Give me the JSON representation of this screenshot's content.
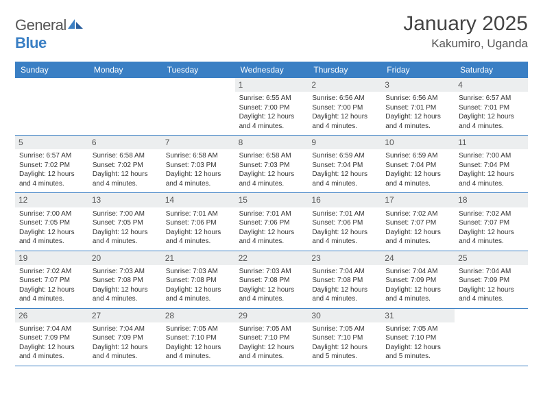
{
  "logo": {
    "text1": "General",
    "text2": "Blue"
  },
  "title": "January 2025",
  "location": "Kakumiro, Uganda",
  "day_names": [
    "Sunday",
    "Monday",
    "Tuesday",
    "Wednesday",
    "Thursday",
    "Friday",
    "Saturday"
  ],
  "colors": {
    "header_bg": "#3a7fc4",
    "header_fg": "#ffffff",
    "date_bg": "#eceeef",
    "border": "#3a7fc4",
    "text": "#333333"
  },
  "weeks": [
    [
      null,
      null,
      null,
      {
        "d": "1",
        "sr": "6:55 AM",
        "ss": "7:00 PM",
        "dl": "12 hours and 4 minutes."
      },
      {
        "d": "2",
        "sr": "6:56 AM",
        "ss": "7:00 PM",
        "dl": "12 hours and 4 minutes."
      },
      {
        "d": "3",
        "sr": "6:56 AM",
        "ss": "7:01 PM",
        "dl": "12 hours and 4 minutes."
      },
      {
        "d": "4",
        "sr": "6:57 AM",
        "ss": "7:01 PM",
        "dl": "12 hours and 4 minutes."
      }
    ],
    [
      {
        "d": "5",
        "sr": "6:57 AM",
        "ss": "7:02 PM",
        "dl": "12 hours and 4 minutes."
      },
      {
        "d": "6",
        "sr": "6:58 AM",
        "ss": "7:02 PM",
        "dl": "12 hours and 4 minutes."
      },
      {
        "d": "7",
        "sr": "6:58 AM",
        "ss": "7:03 PM",
        "dl": "12 hours and 4 minutes."
      },
      {
        "d": "8",
        "sr": "6:58 AM",
        "ss": "7:03 PM",
        "dl": "12 hours and 4 minutes."
      },
      {
        "d": "9",
        "sr": "6:59 AM",
        "ss": "7:04 PM",
        "dl": "12 hours and 4 minutes."
      },
      {
        "d": "10",
        "sr": "6:59 AM",
        "ss": "7:04 PM",
        "dl": "12 hours and 4 minutes."
      },
      {
        "d": "11",
        "sr": "7:00 AM",
        "ss": "7:04 PM",
        "dl": "12 hours and 4 minutes."
      }
    ],
    [
      {
        "d": "12",
        "sr": "7:00 AM",
        "ss": "7:05 PM",
        "dl": "12 hours and 4 minutes."
      },
      {
        "d": "13",
        "sr": "7:00 AM",
        "ss": "7:05 PM",
        "dl": "12 hours and 4 minutes."
      },
      {
        "d": "14",
        "sr": "7:01 AM",
        "ss": "7:06 PM",
        "dl": "12 hours and 4 minutes."
      },
      {
        "d": "15",
        "sr": "7:01 AM",
        "ss": "7:06 PM",
        "dl": "12 hours and 4 minutes."
      },
      {
        "d": "16",
        "sr": "7:01 AM",
        "ss": "7:06 PM",
        "dl": "12 hours and 4 minutes."
      },
      {
        "d": "17",
        "sr": "7:02 AM",
        "ss": "7:07 PM",
        "dl": "12 hours and 4 minutes."
      },
      {
        "d": "18",
        "sr": "7:02 AM",
        "ss": "7:07 PM",
        "dl": "12 hours and 4 minutes."
      }
    ],
    [
      {
        "d": "19",
        "sr": "7:02 AM",
        "ss": "7:07 PM",
        "dl": "12 hours and 4 minutes."
      },
      {
        "d": "20",
        "sr": "7:03 AM",
        "ss": "7:08 PM",
        "dl": "12 hours and 4 minutes."
      },
      {
        "d": "21",
        "sr": "7:03 AM",
        "ss": "7:08 PM",
        "dl": "12 hours and 4 minutes."
      },
      {
        "d": "22",
        "sr": "7:03 AM",
        "ss": "7:08 PM",
        "dl": "12 hours and 4 minutes."
      },
      {
        "d": "23",
        "sr": "7:04 AM",
        "ss": "7:08 PM",
        "dl": "12 hours and 4 minutes."
      },
      {
        "d": "24",
        "sr": "7:04 AM",
        "ss": "7:09 PM",
        "dl": "12 hours and 4 minutes."
      },
      {
        "d": "25",
        "sr": "7:04 AM",
        "ss": "7:09 PM",
        "dl": "12 hours and 4 minutes."
      }
    ],
    [
      {
        "d": "26",
        "sr": "7:04 AM",
        "ss": "7:09 PM",
        "dl": "12 hours and 4 minutes."
      },
      {
        "d": "27",
        "sr": "7:04 AM",
        "ss": "7:09 PM",
        "dl": "12 hours and 4 minutes."
      },
      {
        "d": "28",
        "sr": "7:05 AM",
        "ss": "7:10 PM",
        "dl": "12 hours and 4 minutes."
      },
      {
        "d": "29",
        "sr": "7:05 AM",
        "ss": "7:10 PM",
        "dl": "12 hours and 4 minutes."
      },
      {
        "d": "30",
        "sr": "7:05 AM",
        "ss": "7:10 PM",
        "dl": "12 hours and 5 minutes."
      },
      {
        "d": "31",
        "sr": "7:05 AM",
        "ss": "7:10 PM",
        "dl": "12 hours and 5 minutes."
      },
      null
    ]
  ],
  "labels": {
    "sunrise": "Sunrise: ",
    "sunset": "Sunset: ",
    "daylight": "Daylight: "
  }
}
